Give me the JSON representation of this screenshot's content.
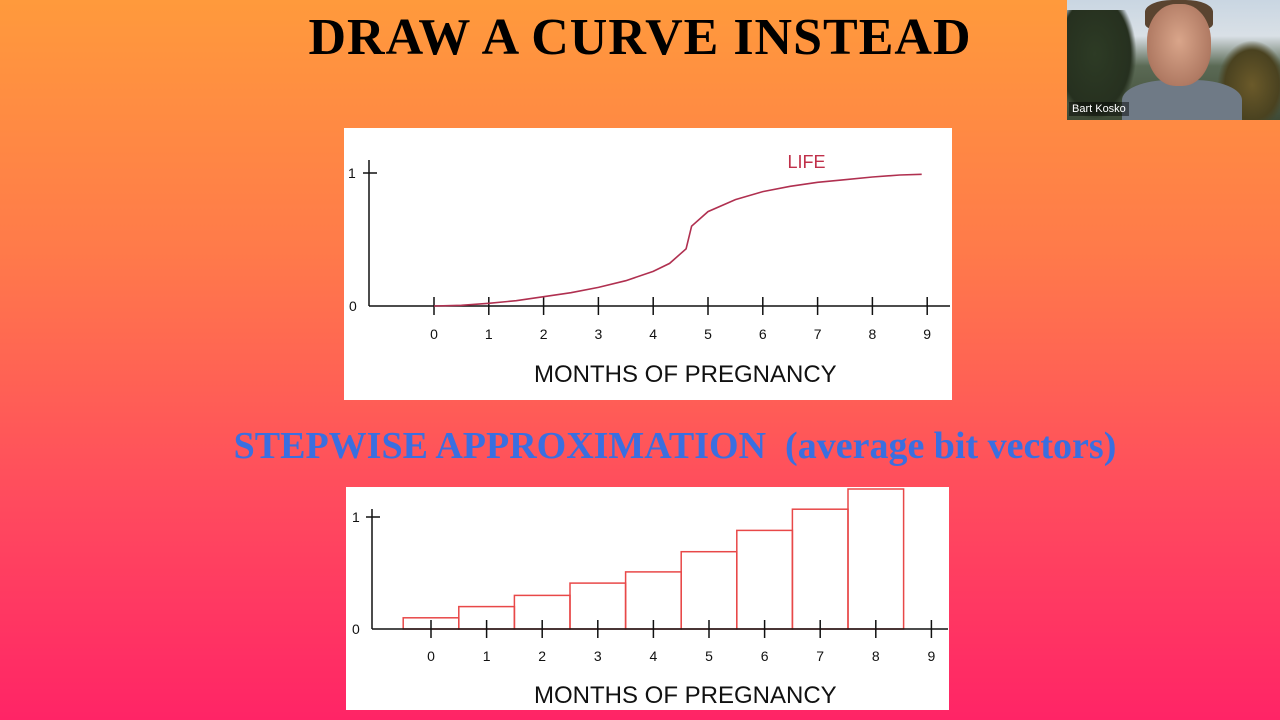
{
  "slide": {
    "title": "DRAW A CURVE INSTEAD",
    "subtitle": "STEPWISE APPROXIMATION  (average bit vectors)"
  },
  "webcam": {
    "participant_name": "Bart Kosko"
  },
  "colors": {
    "curve": "#b03050",
    "bars": "#e84848",
    "subtitle": "#3a6fe0"
  },
  "chart_data": [
    {
      "type": "line",
      "xlabel": "MONTHS OF PREGNANCY",
      "ylabel": "",
      "x_ticks": [
        "0",
        "1",
        "2",
        "3",
        "4",
        "5",
        "6",
        "7",
        "8",
        "9"
      ],
      "y_ticks": [
        "0",
        "1"
      ],
      "xlim": [
        -1.2,
        9.4
      ],
      "ylim": [
        0,
        1
      ],
      "series": [
        {
          "name": "LIFE",
          "x": [
            0,
            0.5,
            1,
            1.5,
            2,
            2.5,
            3,
            3.5,
            4,
            4.3,
            4.6,
            4.7,
            5,
            5.5,
            6,
            6.5,
            7,
            7.5,
            8,
            8.5,
            8.9
          ],
          "y": [
            0,
            0.005,
            0.02,
            0.04,
            0.07,
            0.1,
            0.14,
            0.19,
            0.26,
            0.32,
            0.43,
            0.6,
            0.71,
            0.8,
            0.86,
            0.9,
            0.93,
            0.95,
            0.97,
            0.985,
            0.99
          ]
        }
      ]
    },
    {
      "type": "bar",
      "xlabel": "MONTHS OF PREGNANCY",
      "ylabel": "",
      "categories": [
        "0",
        "1",
        "2",
        "3",
        "4",
        "5",
        "6",
        "7",
        "8"
      ],
      "x_ticks": [
        "0",
        "1",
        "2",
        "3",
        "4",
        "5",
        "6",
        "7",
        "8",
        "9"
      ],
      "y_ticks": [
        "0",
        "1"
      ],
      "values": [
        0.1,
        0.2,
        0.3,
        0.41,
        0.51,
        0.69,
        0.88,
        1.07,
        1.25
      ],
      "ylim": [
        0,
        1.25
      ]
    }
  ]
}
